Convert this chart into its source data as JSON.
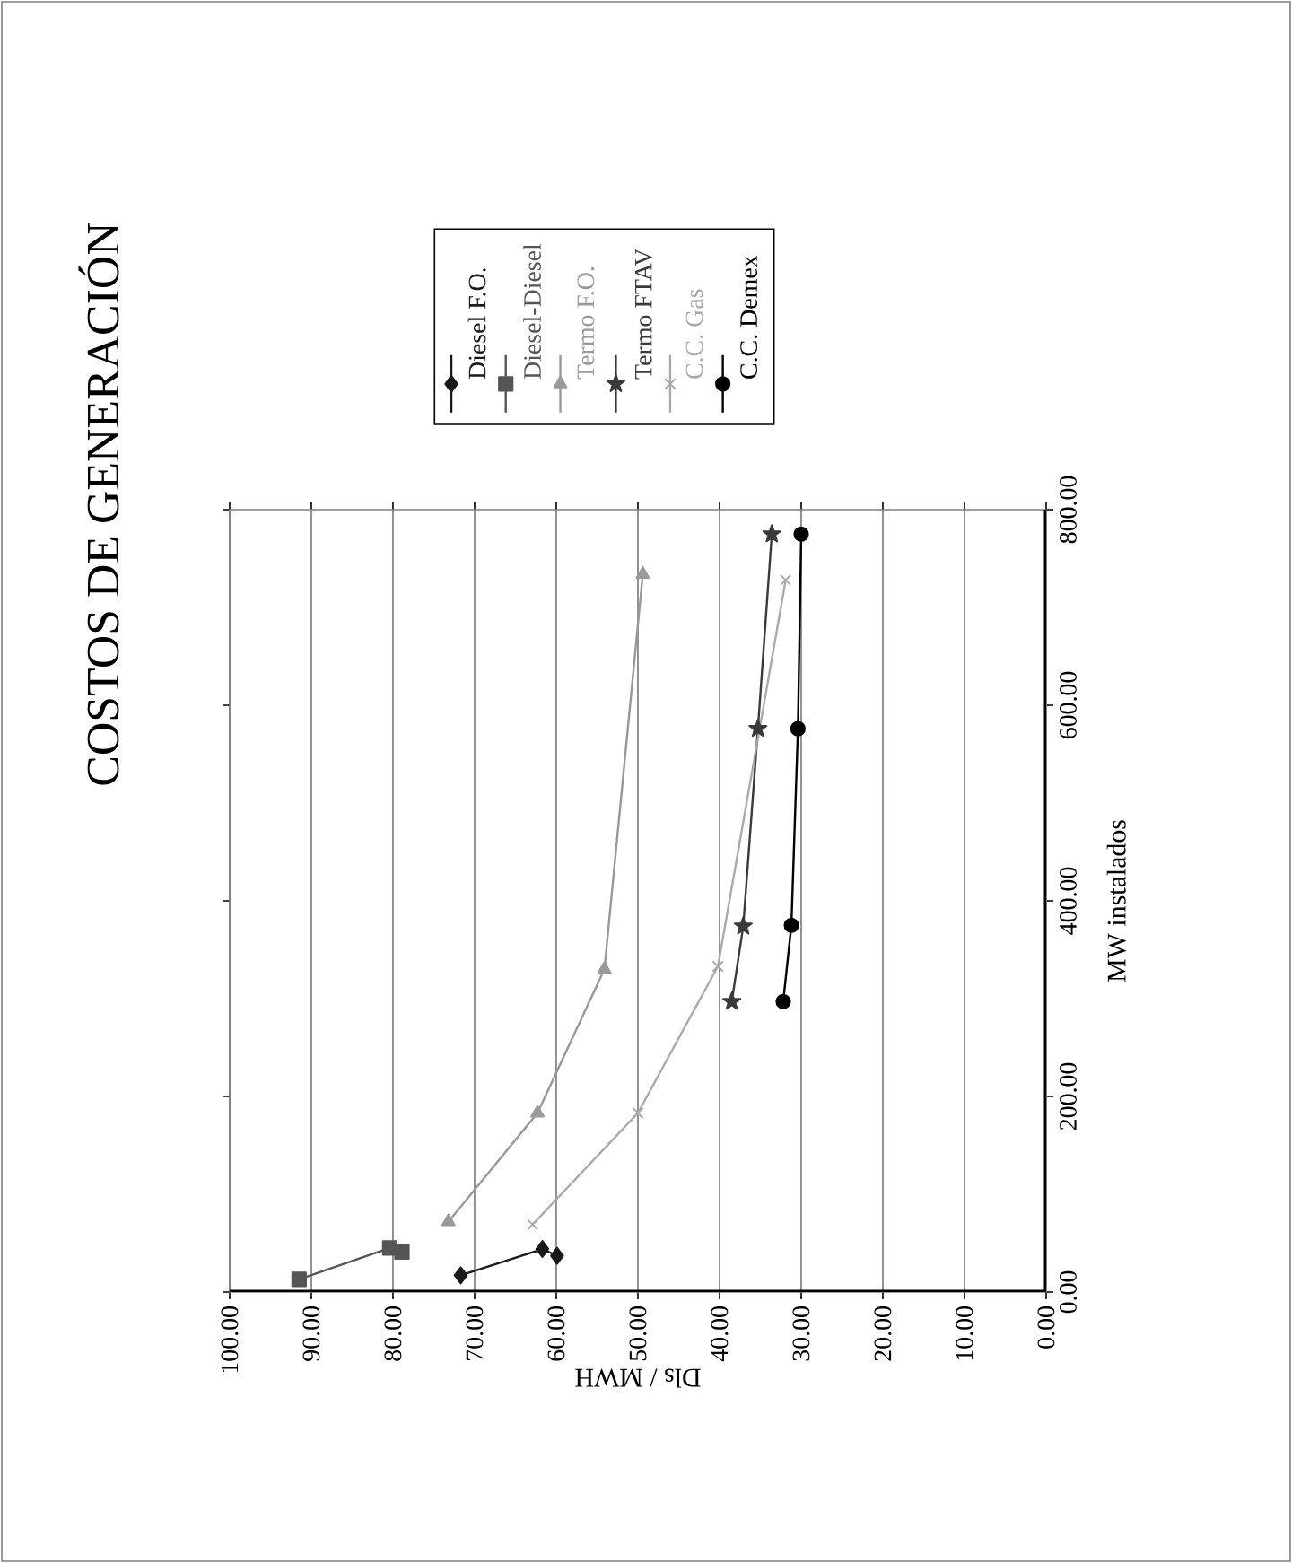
{
  "chart_data": {
    "type": "line",
    "title": "COSTOS DE GENERACIÓN",
    "xlabel": "Dls / MWH",
    "ylabel": "MW instalados",
    "xlim": [
      100,
      0
    ],
    "xticks": [
      {
        "value": 100,
        "label": "100.00"
      },
      {
        "value": 90,
        "label": "90.00"
      },
      {
        "value": 80,
        "label": "80.00"
      },
      {
        "value": 70,
        "label": "70.00"
      },
      {
        "value": 60,
        "label": "60.00"
      },
      {
        "value": 50,
        "label": "50.00"
      },
      {
        "value": 40,
        "label": "40.00"
      },
      {
        "value": 30,
        "label": "30.00"
      },
      {
        "value": 20,
        "label": "20.00"
      },
      {
        "value": 10,
        "label": "10.00"
      },
      {
        "value": 0,
        "label": "0.00"
      }
    ],
    "ylim": [
      0,
      800
    ],
    "yticks": [
      {
        "value": 0,
        "label": "0.00"
      },
      {
        "value": 200,
        "label": "200.00"
      },
      {
        "value": 400,
        "label": "400.00"
      },
      {
        "value": 600,
        "label": "600.00"
      },
      {
        "value": 800,
        "label": "800.00"
      }
    ],
    "grid": "x",
    "legend": "top",
    "series": [
      {
        "name": "Diesel F.O.",
        "color": "#1a1a1a",
        "marker": "diamond",
        "x": [
          71.7,
          61.7,
          59.9
        ],
        "values": [
          17,
          44,
          37
        ]
      },
      {
        "name": "Diesel-Diesel",
        "color": "#555555",
        "marker": "square",
        "x": [
          91.5,
          80.4,
          78.9
        ],
        "values": [
          13,
          45,
          41
        ]
      },
      {
        "name": "Termo F.O.",
        "color": "#999999",
        "marker": "triangle",
        "x": [
          73.2,
          62.3,
          54.1,
          49.4
        ],
        "values": [
          72,
          183,
          330,
          734
        ]
      },
      {
        "name": "Termo FTAV",
        "color": "#3a3a3a",
        "marker": "star",
        "x": [
          38.5,
          37.1,
          35.3,
          33.6
        ],
        "values": [
          297,
          374,
          576,
          775
        ]
      },
      {
        "name": "C.C. Gas",
        "color": "#aaaaaa",
        "marker": "cross",
        "x": [
          62.9,
          50.0,
          40.2,
          31.9
        ],
        "values": [
          69,
          183,
          333,
          728
        ]
      },
      {
        "name": "C.C. Demex",
        "color": "#000000",
        "marker": "circle",
        "x": [
          32.2,
          31.2,
          30.4,
          30.0
        ],
        "values": [
          297,
          375,
          576,
          775
        ]
      }
    ]
  }
}
